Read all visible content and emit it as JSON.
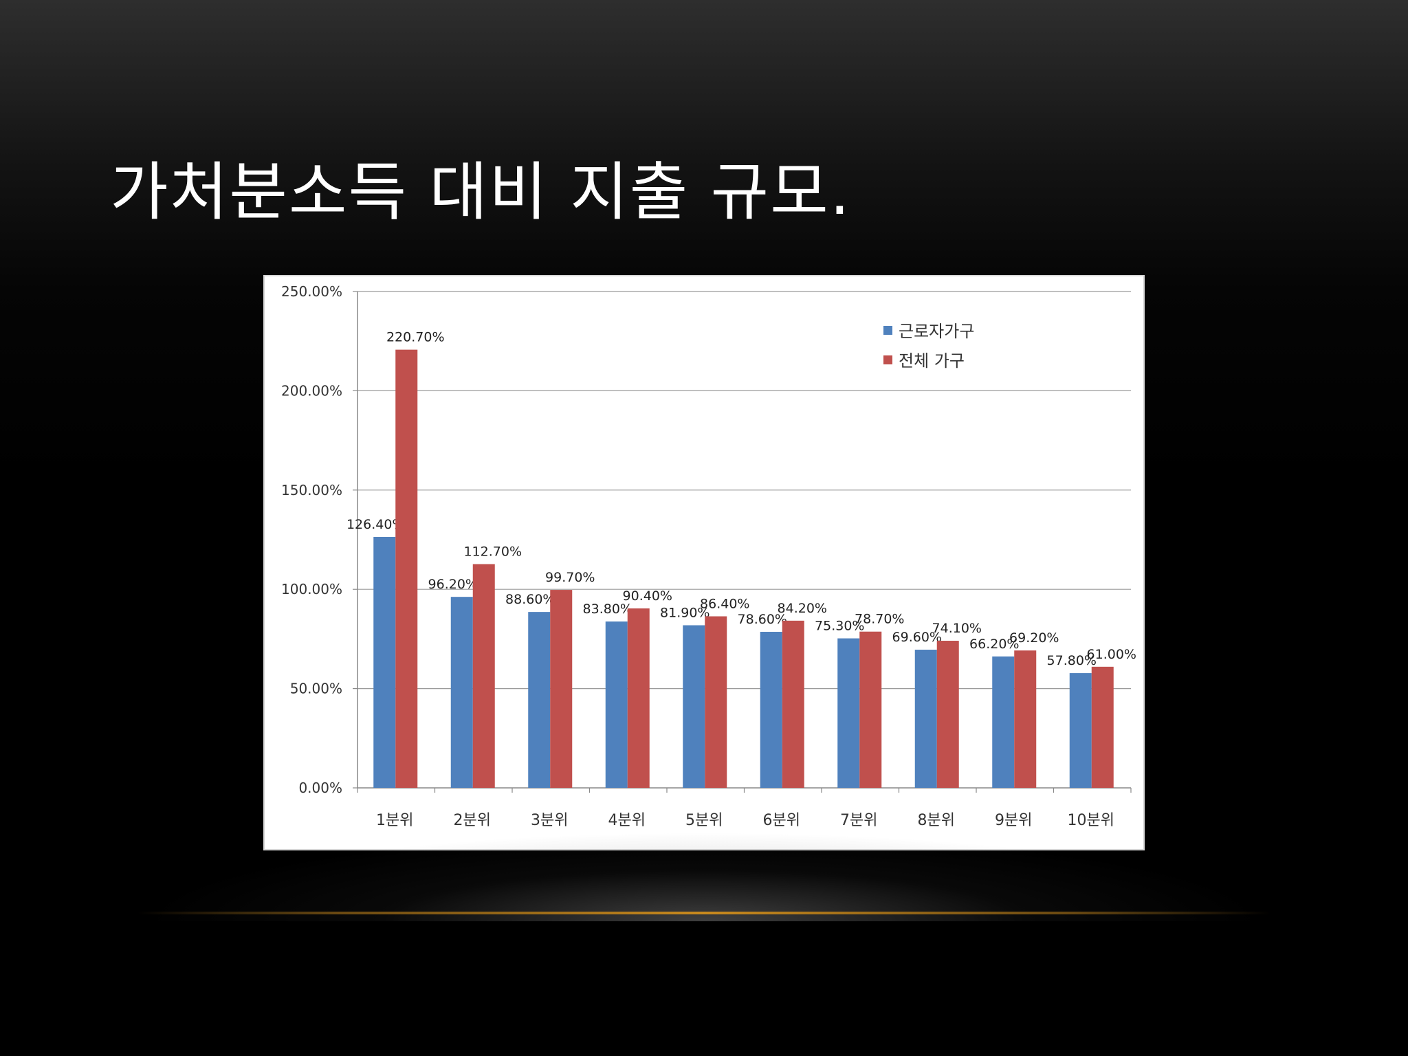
{
  "slide": {
    "title": "가처분소득 대비 지출 규모."
  },
  "chart_data": {
    "type": "bar",
    "categories": [
      "1분위",
      "2분위",
      "3분위",
      "4분위",
      "5분위",
      "6분위",
      "7분위",
      "8분위",
      "9분위",
      "10분위"
    ],
    "series": [
      {
        "name": "근로자가구",
        "color": "#4f81bd",
        "values": [
          126.4,
          96.2,
          88.6,
          83.8,
          81.9,
          78.6,
          75.3,
          69.6,
          66.2,
          57.8
        ],
        "labels": [
          "126.40%",
          "96.20%",
          "88.60%",
          "83.80%",
          "81.90%",
          "78.60%",
          "75.30%",
          "69.60%",
          "66.20%",
          "57.80%"
        ]
      },
      {
        "name": "전체 가구",
        "color": "#c0504d",
        "values": [
          220.7,
          112.7,
          99.7,
          90.4,
          86.4,
          84.2,
          78.7,
          74.1,
          69.2,
          61.0
        ],
        "labels": [
          "220.70%",
          "112.70%",
          "99.70%",
          "90.40%",
          "86.40%",
          "84.20%",
          "78.70%",
          "74.10%",
          "69.20%",
          "61.00%"
        ]
      }
    ],
    "ylim": [
      0,
      250
    ],
    "yticks": [
      0,
      50,
      100,
      150,
      200,
      250
    ],
    "ytick_labels": [
      "0.00%",
      "50.00%",
      "100.00%",
      "150.00%",
      "200.00%",
      "250.00%"
    ],
    "grid": true,
    "legend": "top-right"
  }
}
